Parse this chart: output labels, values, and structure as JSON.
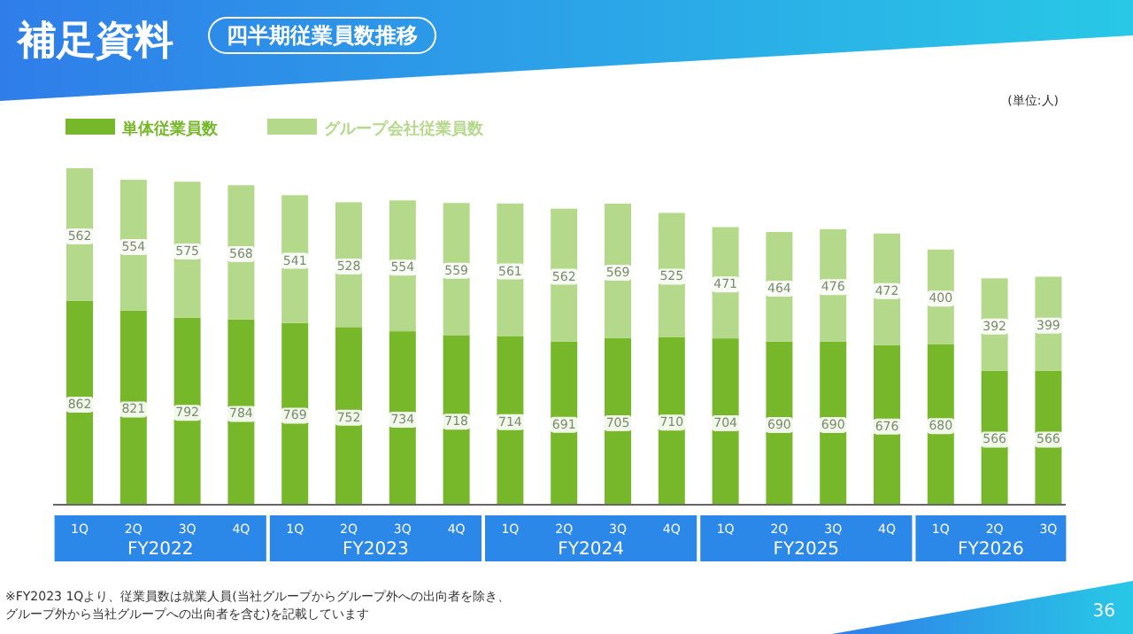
{
  "chart_data": {
    "type": "bar",
    "title": "補足資料",
    "subtitle": "四半期従業員数推移",
    "stacked": true,
    "data_labels": true,
    "legend": "top left",
    "categories": [
      "1Q",
      "2Q",
      "3Q",
      "4Q",
      "1Q",
      "2Q",
      "3Q",
      "4Q",
      "1Q",
      "2Q",
      "3Q",
      "4Q",
      "1Q",
      "2Q",
      "3Q",
      "4Q",
      "1Q",
      "2Q",
      "3Q"
    ],
    "series": [
      {
        "name": "単体従業員数",
        "color": "#76b82a",
        "values": [
          862,
          821,
          792,
          784,
          769,
          752,
          734,
          718,
          714,
          691,
          705,
          710,
          704,
          690,
          690,
          676,
          680,
          566,
          566
        ]
      },
      {
        "name": "グループ会社従業員数",
        "color": "#b5d98a",
        "values": [
          562,
          554,
          575,
          568,
          541,
          528,
          554,
          559,
          561,
          562,
          569,
          525,
          471,
          464,
          476,
          472,
          400,
          392,
          399
        ]
      }
    ],
    "annotations": [
      "(単位:人)",
      "FY2022",
      "FY2023",
      "FY2024",
      "FY2025",
      "FY2026",
      "※FY2023 1Qより、従業員数は就業人員(当社グループからグループ外への出向者を除き、グループ外から当社グループへの出向者を含む)を記載しています",
      "36"
    ]
  }
}
